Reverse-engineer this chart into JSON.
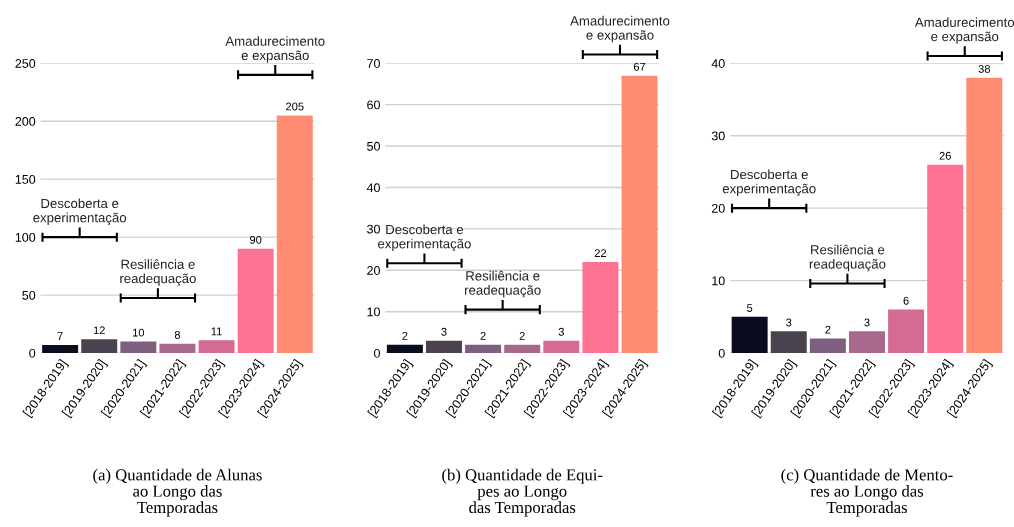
{
  "chart_data": [
    {
      "type": "bar",
      "categories": [
        "[2018-2019]",
        "[2019-2020]",
        "[2020-2021]",
        "[2021-2022]",
        "[2022-2023]",
        "[2023-2024]",
        "[2024-2025]"
      ],
      "values": [
        7,
        12,
        10,
        8,
        11,
        90,
        205
      ],
      "colors": [
        "#0a0c20",
        "#4a434f",
        "#7f5f7f",
        "#a8688e",
        "#d56a93",
        "#fd7290",
        "#fe8c72"
      ],
      "ylim": [
        0,
        250
      ],
      "yticks": [
        0,
        50,
        100,
        150,
        200,
        250
      ],
      "grid": "y",
      "data_labels": true,
      "subtitle": "(a) Quantidade de Alunas\nao Longo das\nTemporadas",
      "annotations": [
        "Descoberta e\nexperimentação",
        "Resiliência e\nreadequação",
        "Amadurecimento\ne expansão"
      ]
    },
    {
      "type": "bar",
      "categories": [
        "[2018-2019]",
        "[2019-2020]",
        "[2020-2021]",
        "[2021-2022]",
        "[2022-2023]",
        "[2023-2024]",
        "[2024-2025]"
      ],
      "values": [
        2,
        3,
        2,
        2,
        3,
        22,
        67
      ],
      "colors": [
        "#0a0c20",
        "#4a434f",
        "#7f5f7f",
        "#a8688e",
        "#d56a93",
        "#fd7290",
        "#fe8c72"
      ],
      "ylim": [
        0,
        70
      ],
      "yticks": [
        0,
        10,
        20,
        30,
        40,
        50,
        60,
        70
      ],
      "grid": "y",
      "data_labels": true,
      "subtitle": "(b) Quantidade de Equi-\npes ao Longo\ndas Temporadas",
      "annotations": [
        "Descoberta e\nexperimentação",
        "Resiliência e\nreadequação",
        "Amadurecimento\ne expansão"
      ]
    },
    {
      "type": "bar",
      "categories": [
        "[2018-2019]",
        "[2019-2020]",
        "[2020-2021]",
        "[2021-2022]",
        "[2022-2023]",
        "[2023-2024]",
        "[2024-2025]"
      ],
      "values": [
        5,
        3,
        2,
        3,
        6,
        26,
        38
      ],
      "colors": [
        "#0a0c20",
        "#4a434f",
        "#7f5f7f",
        "#a8688e",
        "#d56a93",
        "#fd7290",
        "#fe8c72"
      ],
      "ylim": [
        0,
        40
      ],
      "yticks": [
        0,
        10,
        20,
        30,
        40
      ],
      "grid": "y",
      "data_labels": true,
      "subtitle": "(c) Quantidade de Mento-\nres ao Longo das\nTemporadas",
      "annotations": [
        "Descoberta e\nexperimentação",
        "Resiliência e\nreadequação",
        "Amadurecimento\ne expansão"
      ]
    }
  ]
}
